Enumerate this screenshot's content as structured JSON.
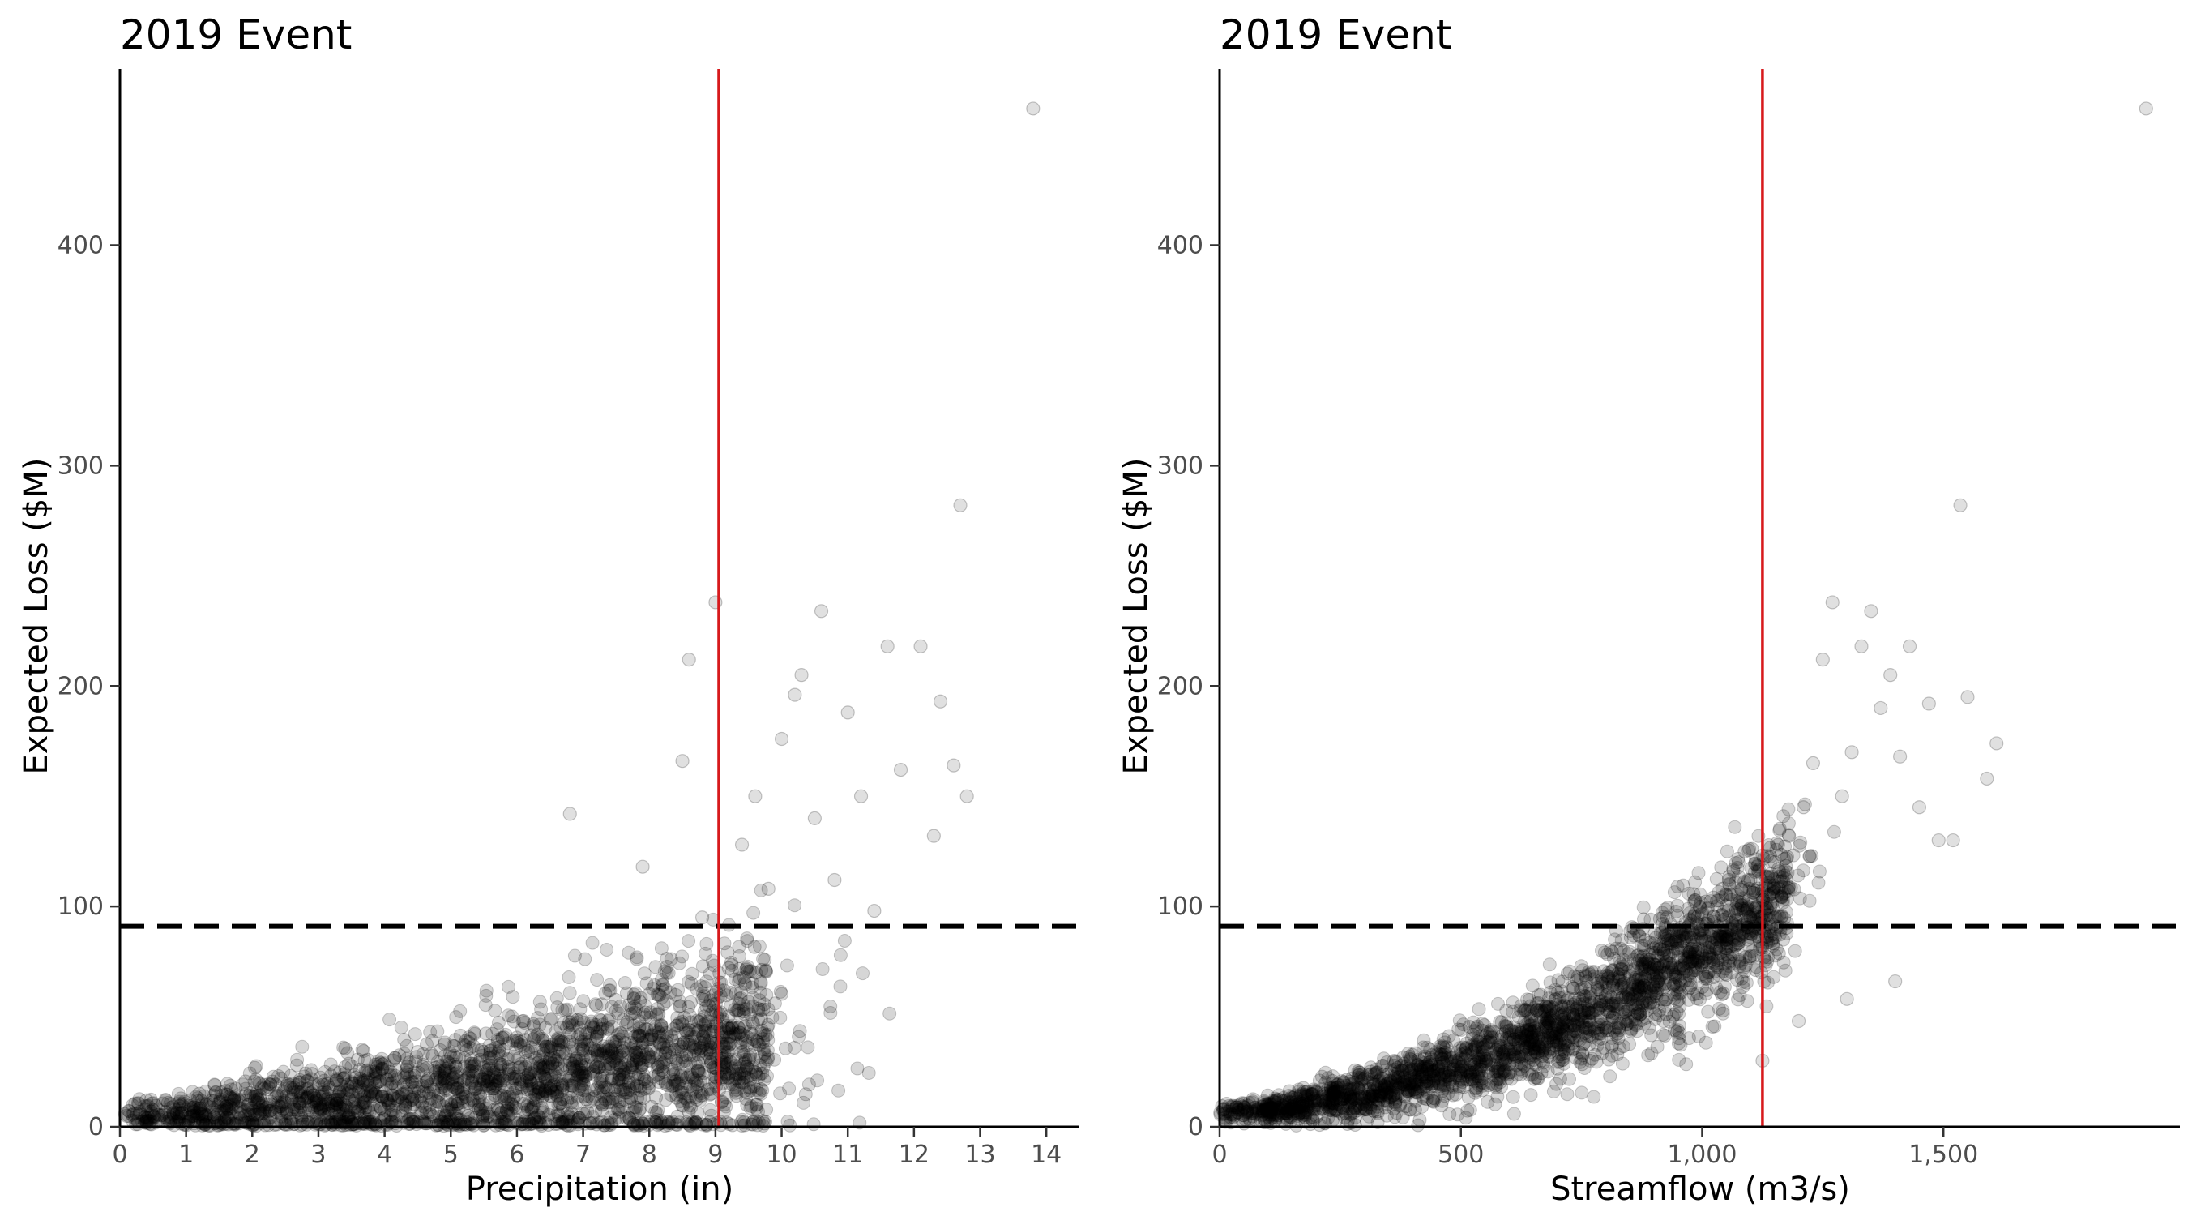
{
  "chart_data": [
    {
      "type": "scatter",
      "title": "2019 Event",
      "xlabel": "Precipitation (in)",
      "ylabel": "Expected Loss ($M)",
      "xlim": [
        0,
        14.5
      ],
      "ylim": [
        0,
        480
      ],
      "xticks": [
        0,
        1,
        2,
        3,
        4,
        5,
        6,
        7,
        8,
        9,
        10,
        11,
        12,
        13,
        14
      ],
      "xtick_labels": [
        "0",
        "1",
        "2",
        "3",
        "4",
        "5",
        "6",
        "7",
        "8",
        "9",
        "10",
        "11",
        "12",
        "13",
        "14"
      ],
      "yticks": [
        0,
        100,
        200,
        300,
        400
      ],
      "ytick_labels": [
        "0",
        "100",
        "200",
        "300",
        "400"
      ],
      "vline": {
        "x": 9.05,
        "color": "#d7191c"
      },
      "hline": {
        "y": 91,
        "style": "dashed",
        "color": "#000000"
      },
      "grid": false,
      "points": [
        [
          0.1,
          5
        ],
        [
          0.4,
          12
        ],
        [
          0.8,
          6
        ],
        [
          1.2,
          15
        ],
        [
          1.6,
          9
        ],
        [
          2.1,
          20
        ],
        [
          2.5,
          11
        ],
        [
          2.9,
          24
        ],
        [
          3.3,
          14
        ],
        [
          3.7,
          30
        ],
        [
          4.1,
          18
        ],
        [
          4.5,
          34
        ],
        [
          4.9,
          22
        ],
        [
          5.3,
          40
        ],
        [
          5.7,
          26
        ],
        [
          6.1,
          48
        ],
        [
          6.5,
          31
        ],
        [
          6.8,
          142
        ],
        [
          7.2,
          55
        ],
        [
          7.6,
          36
        ],
        [
          7.9,
          118
        ],
        [
          8.2,
          62
        ],
        [
          8.5,
          166
        ],
        [
          8.6,
          212
        ],
        [
          8.8,
          95
        ],
        [
          9.0,
          238
        ],
        [
          9.2,
          72
        ],
        [
          9.4,
          128
        ],
        [
          9.6,
          150
        ],
        [
          9.8,
          108
        ],
        [
          10.0,
          176
        ],
        [
          10.2,
          196
        ],
        [
          10.3,
          205
        ],
        [
          10.5,
          140
        ],
        [
          10.6,
          234
        ],
        [
          10.8,
          112
        ],
        [
          11.0,
          188
        ],
        [
          11.2,
          150
        ],
        [
          11.4,
          98
        ],
        [
          11.6,
          218
        ],
        [
          11.8,
          162
        ],
        [
          12.1,
          218
        ],
        [
          12.3,
          132
        ],
        [
          12.4,
          193
        ],
        [
          12.6,
          164
        ],
        [
          12.7,
          282
        ],
        [
          12.8,
          150
        ],
        [
          13.8,
          462
        ]
      ],
      "point_color": "rgba(0,0,0,0.15)"
    },
    {
      "type": "scatter",
      "title": "2019 Event",
      "xlabel": "Streamflow (m3/s)",
      "ylabel": "Expected Loss ($M)",
      "xlim": [
        0,
        1990
      ],
      "ylim": [
        0,
        480
      ],
      "xticks": [
        0,
        500,
        1000,
        1500
      ],
      "xtick_labels": [
        "0",
        "500",
        "1,000",
        "1,500"
      ],
      "yticks": [
        0,
        100,
        200,
        300,
        400
      ],
      "ytick_labels": [
        "0",
        "100",
        "200",
        "300",
        "400"
      ],
      "vline": {
        "x": 1125,
        "color": "#d7191c"
      },
      "hline": {
        "y": 91,
        "style": "dashed",
        "color": "#000000"
      },
      "grid": false,
      "points": [
        [
          20,
          7
        ],
        [
          120,
          11
        ],
        [
          220,
          15
        ],
        [
          320,
          19
        ],
        [
          420,
          24
        ],
        [
          520,
          30
        ],
        [
          620,
          37
        ],
        [
          720,
          46
        ],
        [
          800,
          56
        ],
        [
          880,
          68
        ],
        [
          950,
          80
        ],
        [
          1010,
          92
        ],
        [
          1060,
          103
        ],
        [
          1100,
          112
        ],
        [
          1150,
          120
        ],
        [
          1180,
          132
        ],
        [
          1210,
          145
        ],
        [
          1230,
          165
        ],
        [
          1250,
          212
        ],
        [
          1270,
          238
        ],
        [
          1290,
          150
        ],
        [
          1310,
          170
        ],
        [
          1330,
          218
        ],
        [
          1350,
          234
        ],
        [
          1370,
          190
        ],
        [
          1390,
          205
        ],
        [
          1410,
          168
        ],
        [
          1430,
          218
        ],
        [
          1450,
          145
        ],
        [
          1470,
          192
        ],
        [
          1490,
          130
        ],
        [
          1520,
          130
        ],
        [
          1535,
          282
        ],
        [
          1550,
          195
        ],
        [
          1590,
          158
        ],
        [
          1610,
          174
        ],
        [
          1400,
          66
        ],
        [
          1300,
          58
        ],
        [
          1200,
          48
        ],
        [
          1125,
          30
        ],
        [
          1920,
          462
        ]
      ],
      "point_color": "rgba(0,0,0,0.15)"
    }
  ]
}
